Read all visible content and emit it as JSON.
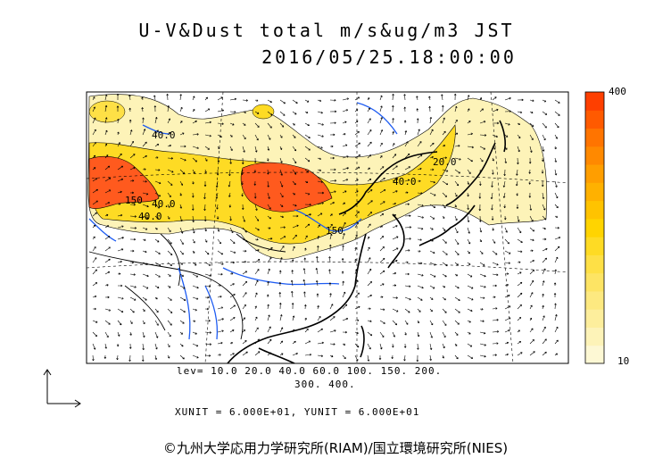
{
  "title_line1": "U-V&Dust total m/s&ug/m3 JST",
  "title_line2": "2016/05/25.18:00:00",
  "levels_text": "lev= 10.0 20.0 40.0 60.0 100. 150. 200.",
  "levels_text2": "300. 400.",
  "units_text": "XUNIT = 6.000E+01, YUNIT = 6.000E+01",
  "copyright": "©九州大学応用力学研究所(RIAM)/国立環境研究所(NIES)",
  "colorbar": {
    "max_label": "400",
    "min_label": "10",
    "colors": [
      "#fdf8d4",
      "#fdf3b8",
      "#fdee9c",
      "#fde980",
      "#fde464",
      "#fee046",
      "#fedb24",
      "#ffd400",
      "#ffc300",
      "#ffb100",
      "#ff9e00",
      "#ff8900",
      "#ff7400",
      "#ff5a00",
      "#fe3f00"
    ]
  },
  "contour_labels": [
    "40.0",
    "150",
    "40.0",
    "150",
    "40.0",
    "40.0",
    "20.0"
  ],
  "colors": {
    "coast": "#000000",
    "rivers": "#1e5cf2",
    "heavy_dust": "#ff5a1e",
    "medium_dust": "#fedb24",
    "light_dust": "#fdf3b8"
  }
}
